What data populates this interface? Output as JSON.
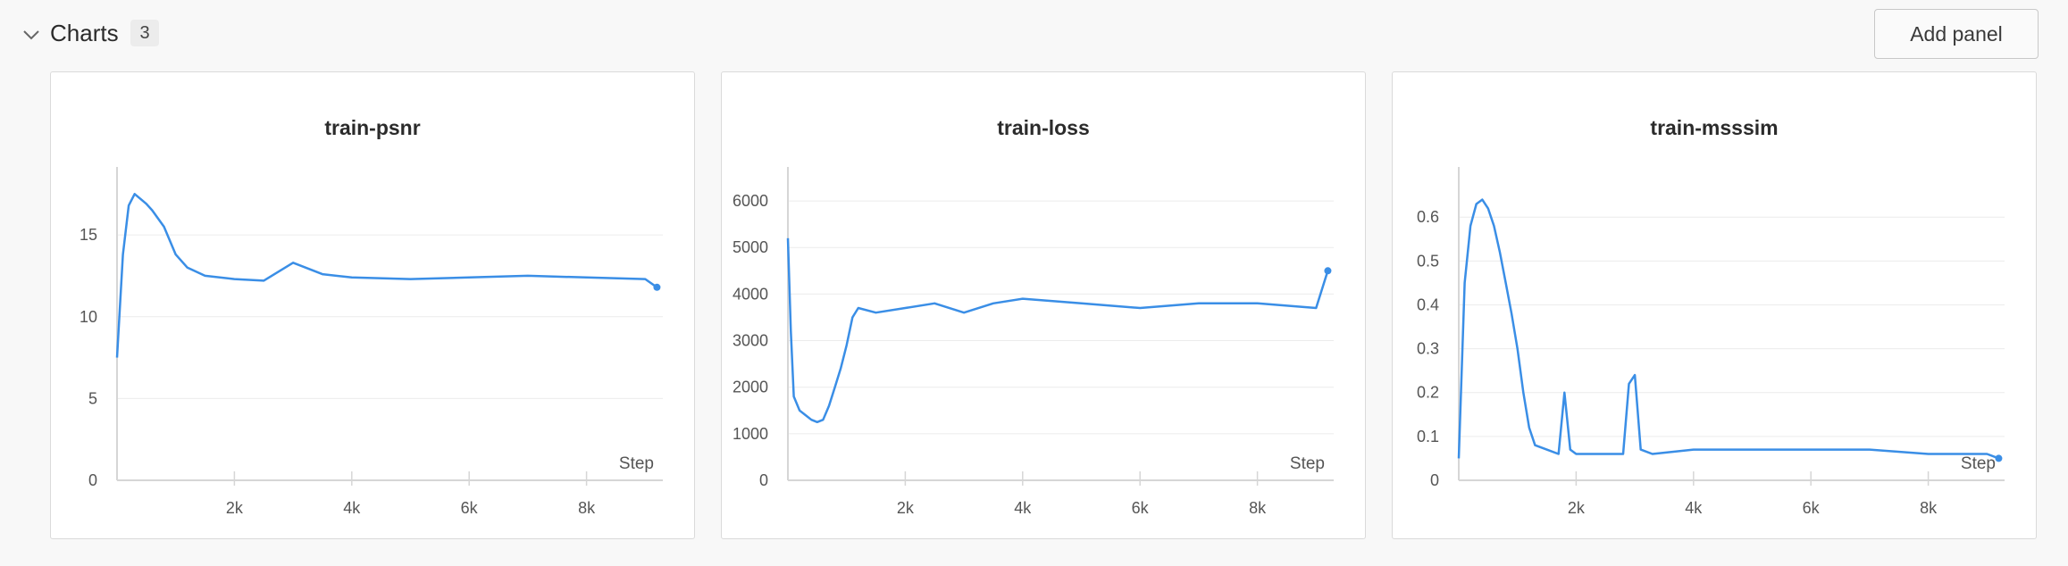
{
  "section": {
    "title": "Charts",
    "count": "3",
    "add_panel_label": "Add panel"
  },
  "chart_data": [
    {
      "type": "line",
      "title": "train-psnr",
      "xlabel": "Step",
      "ylabel": "",
      "xlim": [
        0,
        9300
      ],
      "ylim": [
        0,
        18.5
      ],
      "x_ticks": [
        2000,
        4000,
        6000,
        8000
      ],
      "x_tick_labels": [
        "2k",
        "4k",
        "6k",
        "8k"
      ],
      "y_ticks": [
        0,
        5,
        10,
        15
      ],
      "y_tick_labels": [
        "0",
        "5",
        "10",
        "15"
      ],
      "grid": "horizontal",
      "color": "#3a8ee6",
      "series": [
        {
          "x": [
            0,
            100,
            200,
            300,
            400,
            500,
            600,
            800,
            1000,
            1200,
            1500,
            2000,
            2500,
            3000,
            3500,
            4000,
            5000,
            6000,
            7000,
            8000,
            9000,
            9200
          ],
          "y": [
            7.5,
            13.8,
            16.8,
            17.5,
            17.2,
            16.9,
            16.5,
            15.5,
            13.8,
            13.0,
            12.5,
            12.3,
            12.2,
            13.3,
            12.6,
            12.4,
            12.3,
            12.4,
            12.5,
            12.4,
            12.3,
            11.8
          ]
        }
      ]
    },
    {
      "type": "line",
      "title": "train-loss",
      "xlabel": "Step",
      "ylabel": "",
      "xlim": [
        0,
        9300
      ],
      "ylim": [
        0,
        6500
      ],
      "x_ticks": [
        2000,
        4000,
        6000,
        8000
      ],
      "x_tick_labels": [
        "2k",
        "4k",
        "6k",
        "8k"
      ],
      "y_ticks": [
        0,
        1000,
        2000,
        3000,
        4000,
        5000,
        6000
      ],
      "y_tick_labels": [
        "0",
        "1000",
        "2000",
        "3000",
        "4000",
        "5000",
        "6000"
      ],
      "grid": "horizontal",
      "color": "#3a8ee6",
      "series": [
        {
          "x": [
            0,
            50,
            100,
            200,
            300,
            400,
            500,
            600,
            700,
            800,
            900,
            1000,
            1100,
            1200,
            1500,
            2000,
            2500,
            3000,
            3500,
            4000,
            5000,
            6000,
            7000,
            8000,
            9000,
            9200
          ],
          "y": [
            5200,
            3200,
            1800,
            1500,
            1400,
            1300,
            1250,
            1300,
            1600,
            2000,
            2400,
            2900,
            3500,
            3700,
            3600,
            3700,
            3800,
            3600,
            3800,
            3900,
            3800,
            3700,
            3800,
            3800,
            3700,
            4500
          ]
        }
      ]
    },
    {
      "type": "line",
      "title": "train-msssim",
      "xlabel": "Step",
      "ylabel": "",
      "xlim": [
        0,
        9300
      ],
      "ylim": [
        0,
        0.69
      ],
      "x_ticks": [
        2000,
        4000,
        6000,
        8000
      ],
      "x_tick_labels": [
        "2k",
        "4k",
        "6k",
        "8k"
      ],
      "y_ticks": [
        0,
        0.1,
        0.2,
        0.3,
        0.4,
        0.5,
        0.6
      ],
      "y_tick_labels": [
        "0",
        "0.1",
        "0.2",
        "0.3",
        "0.4",
        "0.5",
        "0.6"
      ],
      "grid": "horizontal",
      "color": "#3a8ee6",
      "series": [
        {
          "x": [
            0,
            100,
            200,
            300,
            400,
            500,
            600,
            700,
            800,
            900,
            1000,
            1100,
            1200,
            1300,
            1500,
            1700,
            1800,
            1900,
            2000,
            2500,
            2800,
            2900,
            3000,
            3100,
            3300,
            4000,
            5000,
            6000,
            7000,
            8000,
            9000,
            9200
          ],
          "y": [
            0.05,
            0.45,
            0.58,
            0.63,
            0.64,
            0.62,
            0.58,
            0.52,
            0.45,
            0.38,
            0.3,
            0.2,
            0.12,
            0.08,
            0.07,
            0.06,
            0.2,
            0.07,
            0.06,
            0.06,
            0.06,
            0.22,
            0.24,
            0.07,
            0.06,
            0.07,
            0.07,
            0.07,
            0.07,
            0.06,
            0.06,
            0.05
          ]
        }
      ]
    }
  ]
}
